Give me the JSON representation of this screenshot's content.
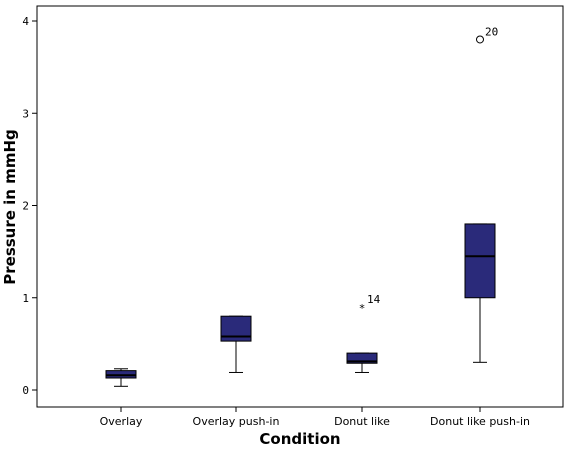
{
  "chart_data": {
    "type": "boxplot",
    "title": "",
    "xlabel": "Condition",
    "ylabel": "Pressure in mmHg",
    "ylim": [
      -0.05,
      4.1
    ],
    "yticks": [
      "0",
      "1",
      "2",
      "3",
      "4"
    ],
    "grid": false,
    "box_color": "#2a2a7a",
    "categories": [
      "Overlay",
      "Overlay push-in",
      "Donut like",
      "Donut like push-in"
    ],
    "boxes": [
      {
        "category": "Overlay",
        "whisker_low": 0.04,
        "q1": 0.13,
        "median": 0.16,
        "q3": 0.21,
        "whisker_high": 0.23
      },
      {
        "category": "Overlay push-in",
        "whisker_low": 0.19,
        "q1": 0.53,
        "median": 0.58,
        "q3": 0.8,
        "whisker_high": 0.8
      },
      {
        "category": "Donut like",
        "whisker_low": 0.19,
        "q1": 0.29,
        "median": 0.31,
        "q3": 0.4,
        "whisker_high": 0.4
      },
      {
        "category": "Donut like push-in",
        "whisker_low": 0.3,
        "q1": 1.0,
        "median": 1.45,
        "q3": 1.8,
        "whisker_high": 1.8
      }
    ],
    "outliers": [
      {
        "category": "Donut like",
        "value": 0.9,
        "marker": "*",
        "label": "14"
      },
      {
        "category": "Donut like push-in",
        "value": 3.8,
        "marker": "o",
        "label": "20"
      }
    ]
  }
}
